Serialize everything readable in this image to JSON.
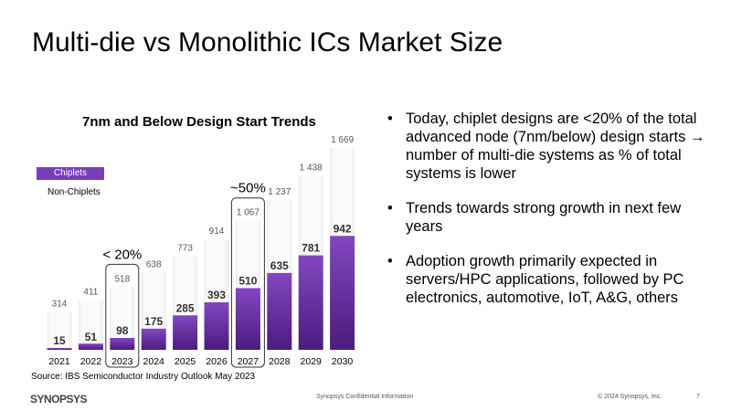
{
  "slide": {
    "title": "Multi-die vs Monolithic ICs Market Size",
    "source": "Source: IBS Semiconductor Industry Outlook May 2023",
    "bullets": [
      "Today, chiplet designs are <20% of the total advanced node (7nm/below) design starts → number of multi-die systems as % of total systems is lower",
      "Trends towards strong growth in next few years",
      "Adoption growth primarily expected in servers/HPC applications, followed by PC electronics, automotive, IoT, A&G, others"
    ],
    "bullet_marker": "•",
    "footer": {
      "logo": "SYNOPSYS",
      "center": "Synopsys Confidential Information",
      "copyright": "© 2024 Synopsys, Inc.",
      "page": "7"
    }
  },
  "chart_data": {
    "type": "bar",
    "title": "7nm and Below Design Start Trends",
    "categories": [
      "2021",
      "2022",
      "2023",
      "2024",
      "2025",
      "2026",
      "2027",
      "2028",
      "2029",
      "2030"
    ],
    "series": [
      {
        "name": "Chiplets",
        "values": [
          15,
          51,
          98,
          175,
          285,
          393,
          510,
          635,
          781,
          942
        ],
        "color": "#7a3db8"
      },
      {
        "name": "Non-Chiplets",
        "totals": [
          314,
          411,
          518,
          638,
          773,
          914,
          1067,
          1237,
          1438,
          1669
        ],
        "total_labels": [
          "314",
          "411",
          "518",
          "638",
          "773",
          "914",
          "1 067",
          "1 237",
          "1 438",
          "1 669"
        ],
        "color": "#f2f2f2"
      }
    ],
    "annotations": [
      {
        "category": "2023",
        "label": "< 20%"
      },
      {
        "category": "2027",
        "label": "~50%"
      }
    ],
    "ylim": [
      0,
      1669
    ],
    "grid": false,
    "legend": "left"
  }
}
